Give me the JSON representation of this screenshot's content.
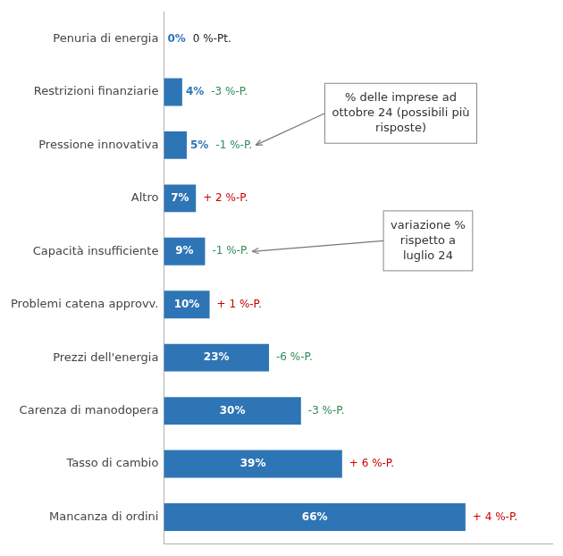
{
  "chart_data": {
    "type": "bar",
    "orientation": "horizontal",
    "categories": [
      "Mancanza di ordini",
      "Tasso di cambio",
      "Carenza di manodopera",
      "Prezzi dell'energia",
      "Problemi catena approvv.",
      "Capacità insufficiente",
      "Altro",
      "Pressione innovativa",
      "Restrizioni finanziarie",
      "Penuria di energia"
    ],
    "values": [
      66,
      39,
      30,
      23,
      10,
      9,
      7,
      5,
      4,
      0
    ],
    "value_labels": [
      "66%",
      "39%",
      "30%",
      "23%",
      "10%",
      "9%",
      "7%",
      "5%",
      "4%",
      "0%"
    ],
    "data_labels": true,
    "color": "#2e75b6",
    "changes": [
      {
        "label": "+ 4 %-P.",
        "color": "#cc0000"
      },
      {
        "label": "+ 6 %-P.",
        "color": "#cc0000"
      },
      {
        "label": "-3 %-P.",
        "color": "#2e8b57"
      },
      {
        "label": "-6 %-P.",
        "color": "#2e8b57"
      },
      {
        "label": "+ 1 %-P.",
        "color": "#cc0000"
      },
      {
        "label": "-1 %-P.",
        "color": "#2e8b57"
      },
      {
        "label": "+ 2 %-P.",
        "color": "#cc0000"
      },
      {
        "label": "-1 %-P.",
        "color": "#2e8b57"
      },
      {
        "label": "-3 %-P.",
        "color": "#2e8b57"
      },
      {
        "label": "0 %-Pt.",
        "color": "#222222"
      }
    ],
    "annotations": [
      "% delle imprese ad\nottobre 24 (possibili più\nrisposte)",
      "variazione %\nrispetto a\nluglio 24"
    ],
    "xlim": [
      0,
      85
    ],
    "grid": false,
    "tick_labels": "y"
  }
}
